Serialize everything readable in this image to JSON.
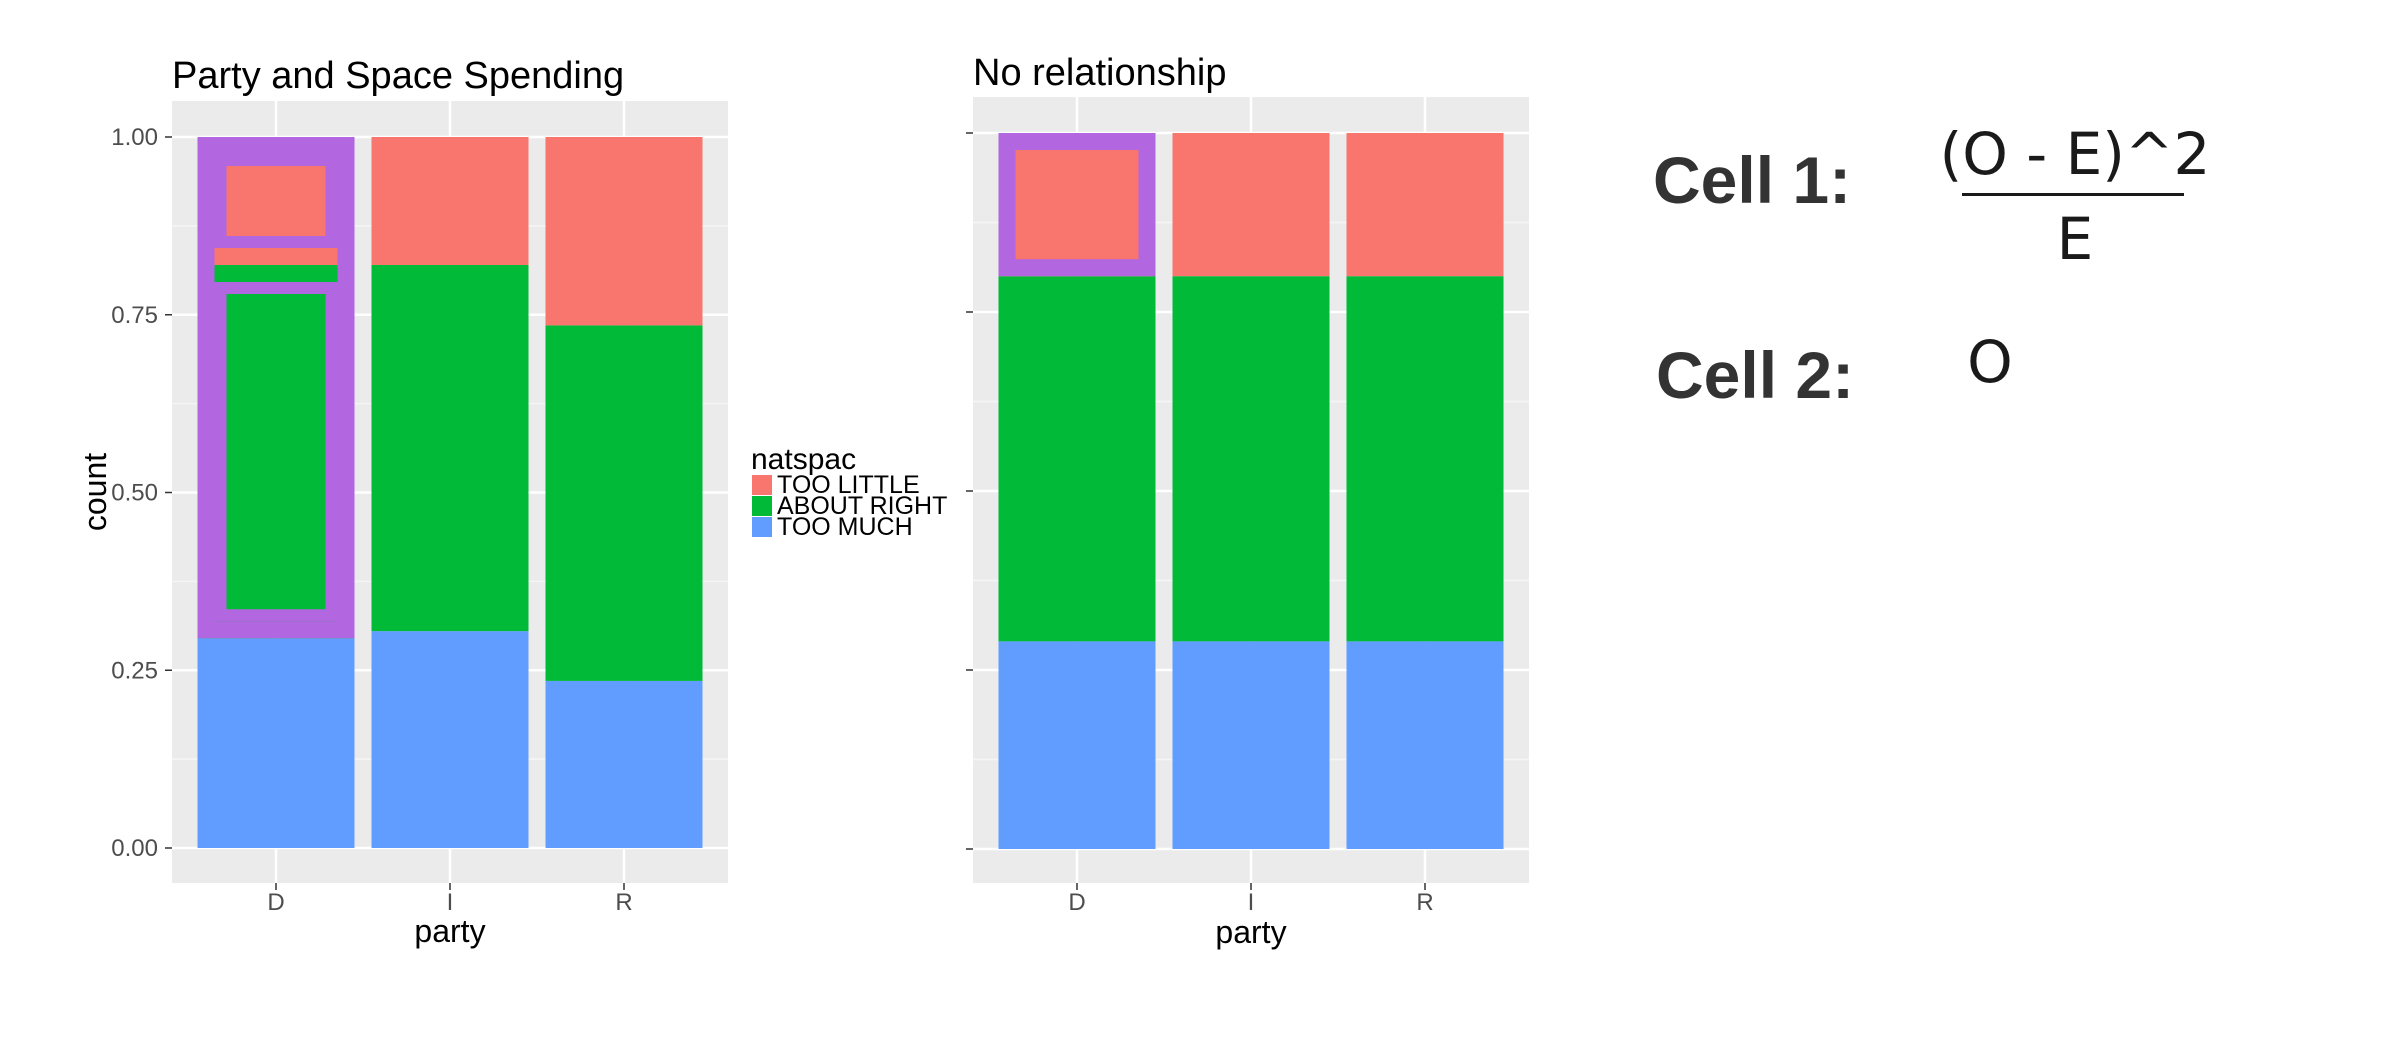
{
  "chart_data": [
    {
      "type": "bar",
      "stacked": true,
      "title": "Party and Space Spending",
      "xlabel": "party",
      "ylabel": "count",
      "categories": [
        "D",
        "I",
        "R"
      ],
      "ylim": [
        0,
        1
      ],
      "yticks": [
        "0.00",
        "0.25",
        "0.50",
        "0.75",
        "1.00"
      ],
      "show_ytick_labels": true,
      "grid": true,
      "series": [
        {
          "name": "TOO MUCH",
          "color": "#619CFF",
          "values": [
            0.295,
            0.305,
            0.235
          ]
        },
        {
          "name": "ABOUT RIGHT",
          "color": "#00BA38",
          "values": [
            0.525,
            0.515,
            0.5
          ]
        },
        {
          "name": "TOO LITTLE",
          "color": "#F8766D",
          "values": [
            0.18,
            0.18,
            0.265
          ]
        }
      ],
      "highlights": [
        {
          "category": "D",
          "from": 0.295,
          "to": 1.0,
          "style": "outer",
          "color": "#B266E0"
        },
        {
          "category": "D",
          "from": 0.82,
          "to": 1.0,
          "style": "inner",
          "color": "#B266E0"
        },
        {
          "category": "D",
          "from": 0.295,
          "to": 0.82,
          "style": "inner",
          "color": "#B266E0"
        }
      ]
    },
    {
      "type": "bar",
      "stacked": true,
      "title": "No relationship",
      "xlabel": "party",
      "ylabel": "",
      "categories": [
        "D",
        "I",
        "R"
      ],
      "ylim": [
        0,
        1
      ],
      "yticks": [
        "0.00",
        "0.25",
        "0.50",
        "0.75",
        "1.00"
      ],
      "show_ytick_labels": false,
      "grid": true,
      "series": [
        {
          "name": "TOO MUCH",
          "color": "#619CFF",
          "values": [
            0.29,
            0.29,
            0.29
          ]
        },
        {
          "name": "ABOUT RIGHT",
          "color": "#00BA38",
          "values": [
            0.51,
            0.51,
            0.51
          ]
        },
        {
          "name": "TOO LITTLE",
          "color": "#F8766D",
          "values": [
            0.2,
            0.2,
            0.2
          ]
        }
      ],
      "highlights": [
        {
          "category": "D",
          "from": 0.8,
          "to": 1.0,
          "style": "outer",
          "color": "#B266E0"
        }
      ]
    }
  ],
  "legend": {
    "title": "natspac",
    "placement": "between-panels",
    "items": [
      {
        "label": "TOO LITTLE",
        "color": "#F8766D"
      },
      {
        "label": "ABOUT RIGHT",
        "color": "#00BA38"
      },
      {
        "label": "TOO MUCH",
        "color": "#619CFF"
      }
    ]
  },
  "notes": {
    "cell1_label": "Cell 1:",
    "cell1_numerator": "(O - E)^2",
    "cell1_denominator": "E",
    "cell2_label": "Cell 2:",
    "cell2_value": "O"
  }
}
